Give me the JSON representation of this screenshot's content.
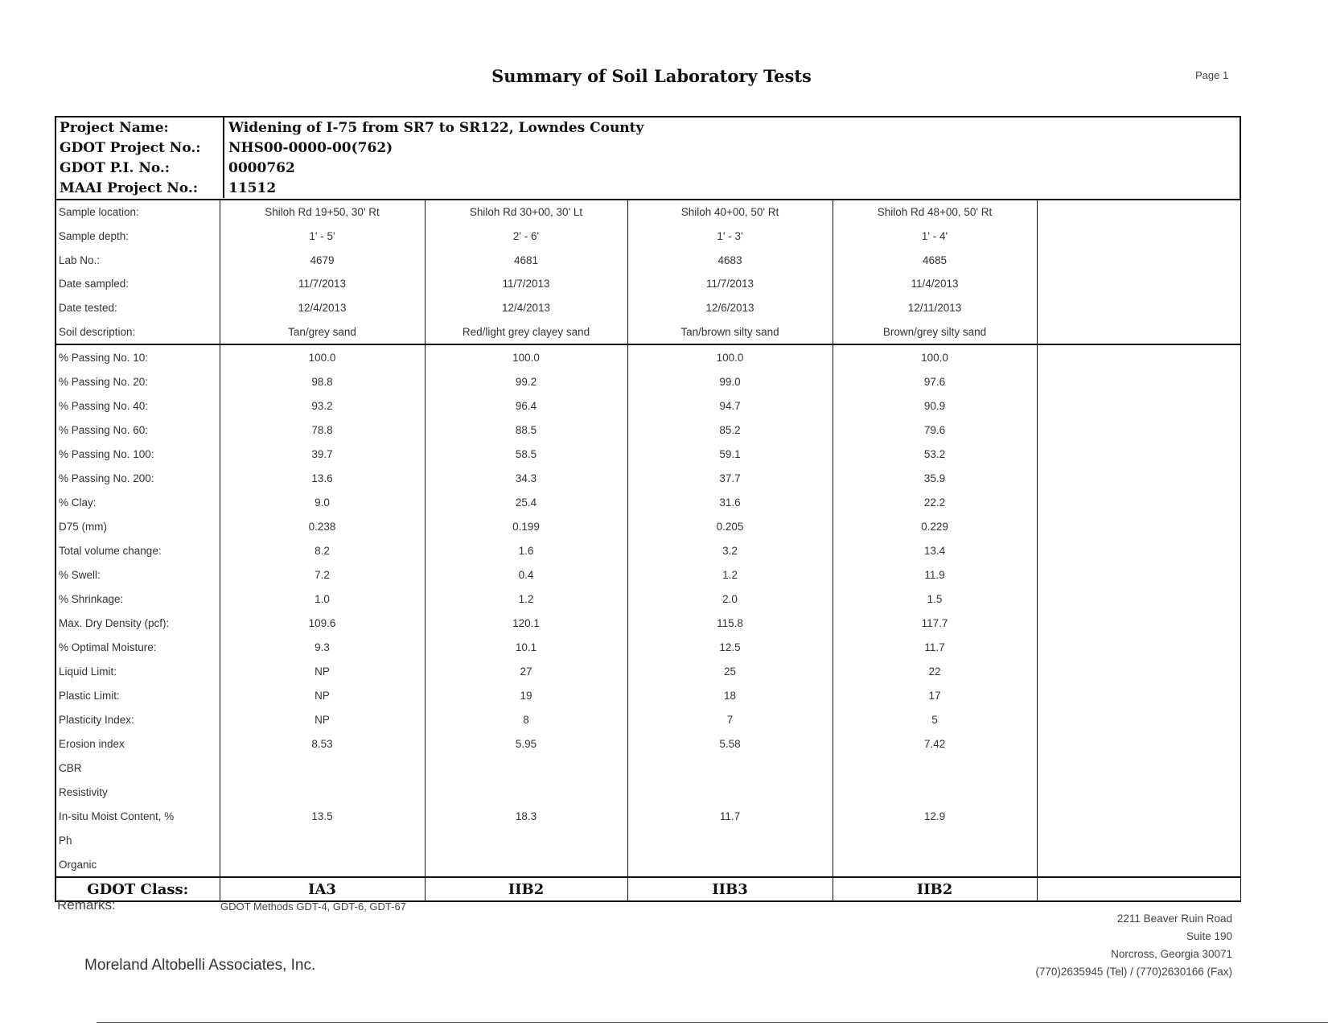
{
  "page": {
    "title": "Summary of Soil Laboratory Tests",
    "page_number": "Page 1"
  },
  "project": {
    "name_label": "Project Name:",
    "name": "Widening of I-75 from SR7 to SR122, Lowndes County",
    "gdot_project_label": "GDOT Project No.:",
    "gdot_project": "NHS00-0000-00(762)",
    "gdot_pi_label": "GDOT P.I. No.:",
    "gdot_pi": "0000762",
    "maai_label": "MAAI Project No.:",
    "maai": "11512"
  },
  "sample_rows": [
    {
      "label": "Sample location:",
      "values": [
        "Shiloh Rd 19+50, 30' Rt",
        "Shiloh Rd 30+00, 30' Lt",
        "Shiloh 40+00, 50' Rt",
        "Shiloh Rd 48+00, 50' Rt",
        ""
      ]
    },
    {
      "label": "Sample depth:",
      "values": [
        "1' - 5'",
        "2' - 6'",
        "1' - 3'",
        "1' - 4'",
        ""
      ]
    },
    {
      "label": "Lab No.:",
      "values": [
        "4679",
        "4681",
        "4683",
        "4685",
        ""
      ]
    },
    {
      "label": "Date sampled:",
      "values": [
        "11/7/2013",
        "11/7/2013",
        "11/7/2013",
        "11/4/2013",
        ""
      ]
    },
    {
      "label": "Date tested:",
      "values": [
        "12/4/2013",
        "12/4/2013",
        "12/6/2013",
        "12/11/2013",
        ""
      ]
    },
    {
      "label": "Soil description:",
      "values": [
        "Tan/grey sand",
        "Red/light grey clayey sand",
        "Tan/brown silty sand",
        "Brown/grey silty sand",
        ""
      ]
    }
  ],
  "test_rows": [
    {
      "label": "% Passing No. 10:",
      "values": [
        "100.0",
        "100.0",
        "100.0",
        "100.0",
        ""
      ]
    },
    {
      "label": "% Passing No. 20:",
      "values": [
        "98.8",
        "99.2",
        "99.0",
        "97.6",
        ""
      ]
    },
    {
      "label": "% Passing No. 40:",
      "values": [
        "93.2",
        "96.4",
        "94.7",
        "90.9",
        ""
      ]
    },
    {
      "label": "% Passing No. 60:",
      "values": [
        "78.8",
        "88.5",
        "85.2",
        "79.6",
        ""
      ]
    },
    {
      "label": "% Passing No. 100:",
      "values": [
        "39.7",
        "58.5",
        "59.1",
        "53.2",
        ""
      ]
    },
    {
      "label": "% Passing No. 200:",
      "values": [
        "13.6",
        "34.3",
        "37.7",
        "35.9",
        ""
      ]
    },
    {
      "label": "% Clay:",
      "values": [
        "9.0",
        "25.4",
        "31.6",
        "22.2",
        ""
      ]
    },
    {
      "label": "D75 (mm)",
      "values": [
        "0.238",
        "0.199",
        "0.205",
        "0.229",
        ""
      ]
    },
    {
      "label": "Total volume change:",
      "values": [
        "8.2",
        "1.6",
        "3.2",
        "13.4",
        ""
      ]
    },
    {
      "label": "% Swell:",
      "values": [
        "7.2",
        "0.4",
        "1.2",
        "11.9",
        ""
      ]
    },
    {
      "label": "% Shrinkage:",
      "values": [
        "1.0",
        "1.2",
        "2.0",
        "1.5",
        ""
      ]
    },
    {
      "label": "Max. Dry Density (pcf):",
      "values": [
        "109.6",
        "120.1",
        "115.8",
        "117.7",
        ""
      ]
    },
    {
      "label": "% Optimal Moisture:",
      "values": [
        "9.3",
        "10.1",
        "12.5",
        "11.7",
        ""
      ]
    },
    {
      "label": "Liquid Limit:",
      "values": [
        "NP",
        "27",
        "25",
        "22",
        ""
      ]
    },
    {
      "label": "Plastic Limit:",
      "values": [
        "NP",
        "19",
        "18",
        "17",
        ""
      ]
    },
    {
      "label": "Plasticity Index:",
      "values": [
        "NP",
        "8",
        "7",
        "5",
        ""
      ]
    },
    {
      "label": "Erosion index",
      "values": [
        "8.53",
        "5.95",
        "5.58",
        "7.42",
        ""
      ]
    },
    {
      "label": "CBR",
      "values": [
        "",
        "",
        "",
        "",
        ""
      ]
    },
    {
      "label": "Resistivity",
      "values": [
        "",
        "",
        "",
        "",
        ""
      ]
    },
    {
      "label": "In-situ Moist Content, %",
      "values": [
        "13.5",
        "18.3",
        "11.7",
        "12.9",
        ""
      ]
    },
    {
      "label": "Ph",
      "values": [
        "",
        "",
        "",
        "",
        ""
      ]
    },
    {
      "label": "Organic",
      "values": [
        "",
        "",
        "",
        "",
        ""
      ]
    }
  ],
  "class_row": {
    "label": "GDOT Class:",
    "values": [
      "IA3",
      "IIB2",
      "IIB3",
      "IIB2",
      ""
    ]
  },
  "remarks": {
    "label": "Remarks:",
    "value": "GDOT Methods GDT-4, GDT-6, GDT-67"
  },
  "footer": {
    "company": "Moreland Altobelli Associates, Inc.",
    "address": [
      "2211 Beaver Ruin Road",
      "Suite 190",
      "Norcross, Georgia 30071",
      "(770)2635945 (Tel) / (770)2630166 (Fax)"
    ]
  }
}
